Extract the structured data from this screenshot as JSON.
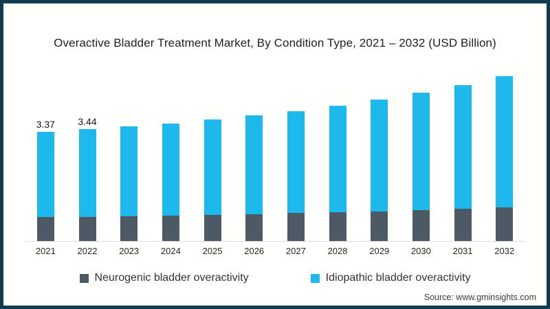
{
  "source": {
    "label": "Source: www.gminsights.com"
  },
  "colors": {
    "frame_border": "#0e3c52",
    "axis_line": "#dcdcdc",
    "neurogenic": "#4d5a66",
    "idiopathic": "#1db9ed"
  },
  "chart_data": {
    "type": "bar",
    "stacked": true,
    "title": "Overactive Bladder Treatment Market, By Condition Type, 2021 – 2032 (USD Billion)",
    "categories": [
      "2021",
      "2022",
      "2023",
      "2024",
      "2025",
      "2026",
      "2027",
      "2028",
      "2029",
      "2030",
      "2031",
      "2032"
    ],
    "series": [
      {
        "name": "Neurogenic bladder overactivity",
        "color": "#4d5a66",
        "values": [
          0.74,
          0.75,
          0.77,
          0.79,
          0.81,
          0.83,
          0.86,
          0.89,
          0.92,
          0.96,
          1.0,
          1.04
        ]
      },
      {
        "name": "Idiopathic bladder overactivity",
        "color": "#1db9ed",
        "values": [
          2.63,
          2.69,
          2.76,
          2.83,
          2.93,
          3.04,
          3.14,
          3.28,
          3.43,
          3.61,
          3.81,
          4.03
        ]
      }
    ],
    "totals": [
      3.37,
      3.44,
      3.53,
      3.62,
      3.74,
      3.87,
      4.0,
      4.17,
      4.35,
      4.57,
      4.81,
      5.07
    ],
    "data_labels": [
      "3.37",
      "3.44",
      "",
      "",
      "",
      "",
      "",
      "",
      "",
      "",
      "",
      ""
    ],
    "xlabel": "",
    "ylabel": "",
    "y_axis": "hidden",
    "gridlines": false,
    "legend_position": "bottom",
    "units": "USD Billion"
  }
}
